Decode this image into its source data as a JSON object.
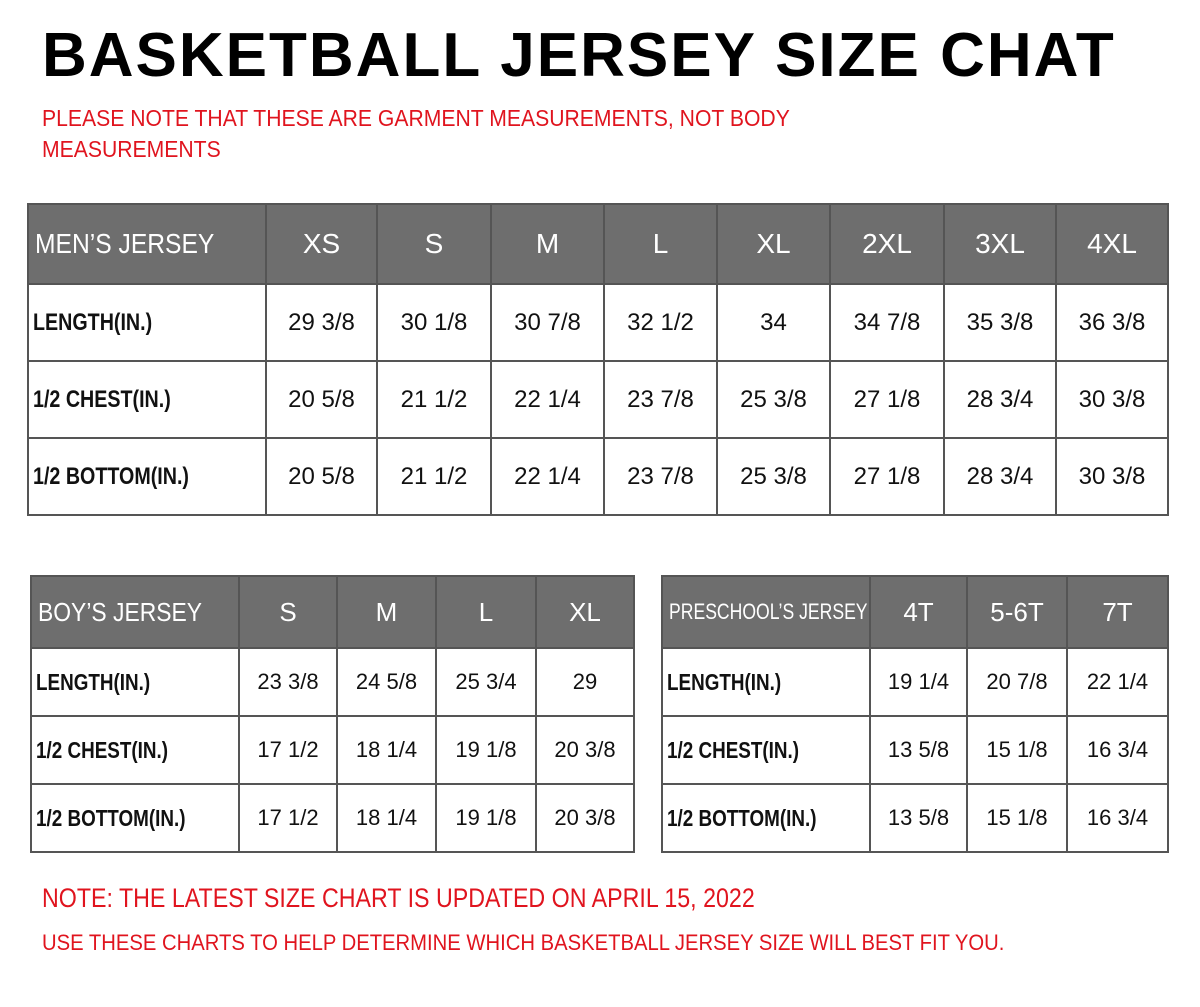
{
  "title": "BASKETBALL JERSEY SIZE CHAT",
  "note": "PLEASE NOTE THAT THESE ARE GARMENT MEASUREMENTS, NOT BODY MEASUREMENTS",
  "colors": {
    "header_bg": "#6e6e6e",
    "accent_red": "#e0141e"
  },
  "tables": {
    "men": {
      "header": [
        "MEN’S JERSEY",
        "XS",
        "S",
        "M",
        "L",
        "XL",
        "2XL",
        "3XL",
        "4XL"
      ],
      "rows": [
        [
          "LENGTH(IN.)",
          "29 3/8",
          "30 1/8",
          "30 7/8",
          "32 1/2",
          "34",
          "34 7/8",
          "35 3/8",
          "36 3/8"
        ],
        [
          "1/2 CHEST(IN.)",
          "20 5/8",
          "21 1/2",
          "22 1/4",
          "23 7/8",
          "25 3/8",
          "27 1/8",
          "28 3/4",
          "30 3/8"
        ],
        [
          "1/2 BOTTOM(IN.)",
          "20 5/8",
          "21 1/2",
          "22 1/4",
          "23 7/8",
          "25 3/8",
          "27 1/8",
          "28 3/4",
          "30 3/8"
        ]
      ]
    },
    "boy": {
      "header": [
        "BOY’S JERSEY",
        "S",
        "M",
        "L",
        "XL"
      ],
      "rows": [
        [
          "LENGTH(IN.)",
          "23 3/8",
          "24 5/8",
          "25 3/4",
          "29"
        ],
        [
          "1/2 CHEST(IN.)",
          "17 1/2",
          "18 1/4",
          "19 1/8",
          "20 3/8"
        ],
        [
          "1/2 BOTTOM(IN.)",
          "17 1/2",
          "18 1/4",
          "19 1/8",
          "20 3/8"
        ]
      ]
    },
    "pre": {
      "header": [
        "PRESCHOOL’S JERSEY",
        "4T",
        "5-6T",
        "7T"
      ],
      "rows": [
        [
          "LENGTH(IN.)",
          "19 1/4",
          "20 7/8",
          "22 1/4"
        ],
        [
          "1/2 CHEST(IN.)",
          "13 5/8",
          "15 1/8",
          "16 3/4"
        ],
        [
          "1/2 BOTTOM(IN.)",
          "13 5/8",
          "15 1/8",
          "16 3/4"
        ]
      ]
    }
  },
  "footer": {
    "updated": "NOTE: THE LATEST SIZE CHART IS UPDATED ON APRIL 15, 2022",
    "usage": "USE THESE CHARTS TO HELP DETERMINE WHICH  BASKETBALL JERSEY  SIZE WILL BEST FIT YOU."
  }
}
